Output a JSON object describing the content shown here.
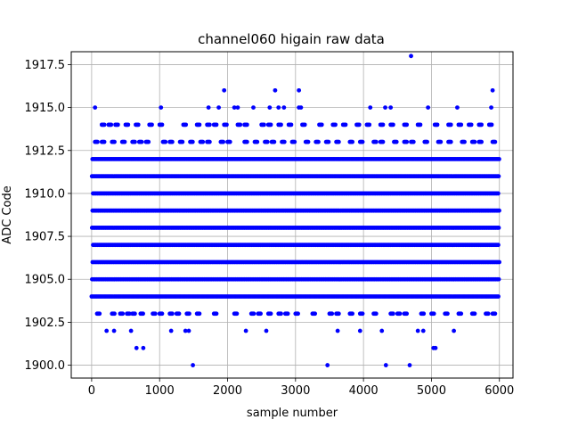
{
  "chart_data": {
    "type": "scatter",
    "title": "channel060 higain raw data",
    "xlabel": "sample number",
    "ylabel": "ADC Code",
    "xlim": [
      -300,
      6200
    ],
    "ylim": [
      1899.25,
      1918.25
    ],
    "xticks": [
      0,
      1000,
      2000,
      3000,
      4000,
      5000,
      6000
    ],
    "yticks": [
      1900.0,
      1902.5,
      1905.0,
      1907.5,
      1910.0,
      1912.5,
      1915.0,
      1917.5
    ],
    "xtick_labels": [
      "0",
      "1000",
      "2000",
      "3000",
      "4000",
      "5000",
      "6000"
    ],
    "ytick_labels": [
      "1900.0",
      "1902.5",
      "1905.0",
      "1907.5",
      "1910.0",
      "1912.5",
      "1915.0",
      "1917.5"
    ],
    "grid": true,
    "color": "#0000ff",
    "n_samples": 6000,
    "dense_levels": [
      1904,
      1905,
      1906,
      1907,
      1908,
      1909,
      1910,
      1911,
      1912
    ],
    "sparse_levels": {
      "1903": [
        80,
        300,
        420,
        520,
        600,
        720,
        900,
        1000,
        1150,
        1250,
        1400,
        1550,
        1800,
        2100,
        2350,
        2450,
        2600,
        2750,
        2850,
        3000,
        3250,
        3500,
        3600,
        3800,
        3950,
        4150,
        4400,
        4500,
        4600,
        4850,
        5000,
        5200,
        5400,
        5600,
        5800,
        5900
      ],
      "1913": [
        50,
        150,
        300,
        450,
        600,
        700,
        800,
        1050,
        1150,
        1300,
        1450,
        1600,
        1700,
        1900,
        2000,
        2250,
        2400,
        2550,
        2650,
        2800,
        2950,
        3150,
        3300,
        3450,
        3600,
        3800,
        3950,
        4150,
        4250,
        4450,
        4600,
        4700,
        4900,
        5100,
        5250,
        5450,
        5600,
        5700,
        5900
      ],
      "1914": [
        150,
        250,
        350,
        500,
        650,
        850,
        1000,
        1350,
        1550,
        1700,
        1800,
        1950,
        2150,
        2250,
        2500,
        2600,
        2750,
        2900,
        3100,
        3350,
        3550,
        3700,
        3900,
        4050,
        4250,
        4400,
        4600,
        4800,
        5050,
        5250,
        5400,
        5550,
        5700,
        5850
      ]
    },
    "outliers": [
      {
        "x": 50,
        "y": 1915
      },
      {
        "x": 1020,
        "y": 1915
      },
      {
        "x": 1720,
        "y": 1915
      },
      {
        "x": 1870,
        "y": 1915
      },
      {
        "x": 2100,
        "y": 1915
      },
      {
        "x": 2150,
        "y": 1915
      },
      {
        "x": 2380,
        "y": 1915
      },
      {
        "x": 2620,
        "y": 1915
      },
      {
        "x": 2750,
        "y": 1915
      },
      {
        "x": 2830,
        "y": 1915
      },
      {
        "x": 3050,
        "y": 1915
      },
      {
        "x": 3080,
        "y": 1915
      },
      {
        "x": 4100,
        "y": 1915
      },
      {
        "x": 4320,
        "y": 1915
      },
      {
        "x": 4400,
        "y": 1915
      },
      {
        "x": 4950,
        "y": 1915
      },
      {
        "x": 5380,
        "y": 1915
      },
      {
        "x": 5880,
        "y": 1915
      },
      {
        "x": 1950,
        "y": 1916
      },
      {
        "x": 2700,
        "y": 1916
      },
      {
        "x": 3050,
        "y": 1916
      },
      {
        "x": 5900,
        "y": 1916
      },
      {
        "x": 4700,
        "y": 1918
      },
      {
        "x": 220,
        "y": 1902
      },
      {
        "x": 330,
        "y": 1902
      },
      {
        "x": 580,
        "y": 1902
      },
      {
        "x": 1170,
        "y": 1902
      },
      {
        "x": 1380,
        "y": 1902
      },
      {
        "x": 1430,
        "y": 1902
      },
      {
        "x": 2270,
        "y": 1902
      },
      {
        "x": 2570,
        "y": 1902
      },
      {
        "x": 3620,
        "y": 1902
      },
      {
        "x": 3950,
        "y": 1902
      },
      {
        "x": 4270,
        "y": 1902
      },
      {
        "x": 4800,
        "y": 1902
      },
      {
        "x": 4880,
        "y": 1902
      },
      {
        "x": 5330,
        "y": 1902
      },
      {
        "x": 660,
        "y": 1901
      },
      {
        "x": 760,
        "y": 1901
      },
      {
        "x": 5030,
        "y": 1901
      },
      {
        "x": 5060,
        "y": 1901
      },
      {
        "x": 1490,
        "y": 1900
      },
      {
        "x": 3470,
        "y": 1900
      },
      {
        "x": 4330,
        "y": 1900
      },
      {
        "x": 4680,
        "y": 1900
      }
    ]
  }
}
